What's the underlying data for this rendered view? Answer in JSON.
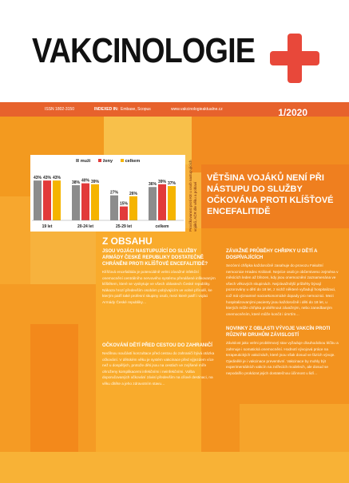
{
  "masthead": {
    "title": "VAKCINOLOGIE",
    "issn": "ISSN 1802-3150",
    "indexed_label": "INDEXED IN:",
    "indexed_value": "Embase, Scopus",
    "website": "www.vakcinologieaktualne.cz",
    "issue": "1/2020"
  },
  "colors": {
    "accent": "#e8483a",
    "bar": "#e7622c",
    "cover": "#f5a623"
  },
  "chart_data": {
    "type": "bar",
    "categories": [
      "19 let",
      "20-24 let",
      "25-29 let",
      "celkem"
    ],
    "series": [
      {
        "name": "muži",
        "color": "#8c8c8c",
        "values": [
          43,
          38,
          27,
          36
        ]
      },
      {
        "name": "ženy",
        "color": "#e23a3a",
        "values": [
          43,
          40,
          15,
          39
        ]
      },
      {
        "name": "celkem",
        "color": "#f5b400",
        "values": [
          43,
          39,
          26,
          37
        ]
      }
    ],
    "ylim": [
      0,
      50
    ],
    "legend_position": "top",
    "side_note": "Proočkovanost proti KE u osob nastupujících vojáků, AČR dle věku a pohlaví"
  },
  "headline": "Většina vojáků není při nástupu do služby očkována proti klíšťové encefalitidě",
  "contents": {
    "heading": "Z OBSAHU",
    "articles": [
      {
        "title": "Jsou vojáci nastupující do služby Armády České republiky dostatečně chráněni proti klíšťové encefalitidě?",
        "body": "Klíšťová encefalitida je potenciálně velmi závažné infekční onemocnění centrálního nervového systému přenášené infikovaným klíštětem, které se vyskytuje ve všech oblastech České republiky. Nákaza hrozí především osobám pobývajícím ve volné přírodě, ke kterým patří také profesní skupiny osob, mezi které patří i vojáci Armády České republiky…"
      },
      {
        "title": "Očkování dětí před cestou do zahraničí",
        "body": "Nedílnou součástí konzultace před cestou do zahraničí bývá otázka očkování. V dětském věku je systém vakcinace před výjezdem více než u dospělých, protože děti jsou na cestách ve zvýšené míře ohroženy komplikacemi infekčními i neinfekčními. Volba doporučovaných očkování závisí především na cílové destinaci, na věku dítěte a jeho zdravotním stavu…"
      },
      {
        "title": "Závažné průběhy chřipky u dětí a dospívajících",
        "body": "Sezónní chřipka každoročně zasahuje do provozu Fakultní nemocnice Hradec Králové. Nejvíce osob je občerstveno zejména v měsících leden až březen, kdy jsou onemocnění zaznamenána ve všech věkových skupinách. Nejzávažnější průběhy bývají pozorovány u dětí do 18 let, z nichž některé vyžadují hospitalizaci, což má významné socioekonomické dopady pro nemocnici. Mezi hospitalizovanými pacienty jsou každoročně i děti do 18 let, u kterých může chřipka proběhnout závažným, nebo zanedbaným onemocněním, které může končit i úmrtím…"
      },
      {
        "title": "Novinky z oblasti vývoje vakcín proti různým druhům závislostí",
        "body": "Závislost jako velmi problémový stav vyžaduje dlouhodobou léčbu a zahrnuje i somatická onemocnění. Hodnotí vývojová práce na terapeutických vakcínách, které jsou však dosud ve fázích vývoje. Ojedinělé je i vakcinace preventivní. Vakcinace by mohly být experimentálních vakcín na zvířecích modelech, ale dosud se nepodařilo prokázat jejich dostatečnou účinnost u lidí…"
      }
    ]
  }
}
